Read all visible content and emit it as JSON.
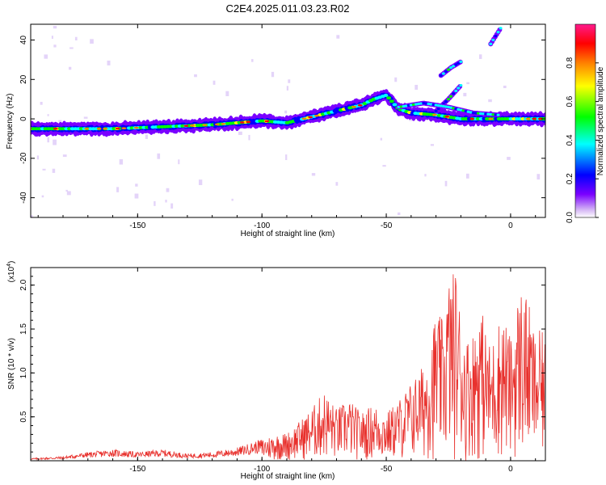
{
  "title": "C2E4.2025.011.03.23.R02",
  "colors": {
    "snr_line": "#e8302c",
    "axes": "#000000"
  },
  "chart_data": [
    {
      "type": "heatmap",
      "name": "spectrogram",
      "xlabel": "Height of straight line (km)",
      "ylabel": "Frequency (Hz)",
      "xlim": [
        -193,
        14
      ],
      "ylim": [
        -50,
        48
      ],
      "xticks": [
        "-150",
        "-100",
        "-50",
        "0"
      ],
      "xtick_values": [
        -150,
        -100,
        -50,
        0
      ],
      "yticks": [
        "-40",
        "-20",
        "0",
        "20",
        "40"
      ],
      "ytick_values": [
        -40,
        -20,
        0,
        20,
        40
      ],
      "colorbar": {
        "label": "Normalized spectral amplitude",
        "range": [
          0,
          1
        ],
        "ticks": [
          "0.0",
          "0.2",
          "0.4",
          "0.6",
          "0.8"
        ],
        "tick_values": [
          0.0,
          0.2,
          0.4,
          0.6,
          0.8
        ],
        "colormap": [
          "#ffffff",
          "#d4b5f5",
          "#7a00ff",
          "#0000ff",
          "#00ffff",
          "#00ff00",
          "#ffff00",
          "#ff8000",
          "#ff0000",
          "#ff1a8c"
        ]
      },
      "ridge": {
        "name": "main trace",
        "x": [
          -193,
          -180,
          -160,
          -140,
          -120,
          -110,
          -100,
          -90,
          -80,
          -70,
          -60,
          -55,
          -50,
          -45,
          -40,
          -30,
          -20,
          -10,
          0,
          14
        ],
        "y": [
          -5,
          -5,
          -5,
          -4,
          -3,
          -2,
          -1,
          -2,
          1,
          4,
          7,
          10,
          12,
          5,
          3,
          2,
          0,
          0,
          0,
          0
        ]
      },
      "branches": [
        {
          "x": [
            -30,
            -25,
            -20
          ],
          "y": [
            4,
            10,
            17
          ]
        },
        {
          "x": [
            -28,
            -24,
            -20
          ],
          "y": [
            22,
            26,
            29
          ]
        },
        {
          "x": [
            -45,
            -35,
            -25,
            -15,
            -5
          ],
          "y": [
            6,
            8,
            6,
            3,
            2
          ]
        },
        {
          "x": [
            -8,
            -6,
            -4
          ],
          "y": [
            38,
            42,
            46
          ]
        }
      ]
    },
    {
      "type": "line",
      "name": "snr",
      "xlabel": "Height of straight line (km)",
      "ylabel": "SNR (10 * v/v)",
      "yscale_label": "(x10",
      "yscale_exp": "4",
      "yscale_close": ")",
      "xlim": [
        -193,
        14
      ],
      "ylim": [
        0,
        2.2
      ],
      "xticks": [
        "-150",
        "-100",
        "-50",
        "0"
      ],
      "xtick_values": [
        -150,
        -100,
        -50,
        0
      ],
      "yticks": [
        "0.5",
        "1.0",
        "1.5",
        "2.0"
      ],
      "ytick_values": [
        0.5,
        1.0,
        1.5,
        2.0
      ],
      "envelope": {
        "x": [
          -193,
          -180,
          -170,
          -160,
          -150,
          -140,
          -130,
          -120,
          -110,
          -100,
          -95,
          -90,
          -85,
          -80,
          -75,
          -70,
          -65,
          -60,
          -55,
          -50,
          -45,
          -40,
          -35,
          -30,
          -27,
          -25,
          -22,
          -20,
          -18,
          -15,
          -12,
          -10,
          -8,
          -5,
          -3,
          0,
          3,
          5,
          8,
          10,
          12,
          14
        ],
        "y": [
          0.03,
          0.05,
          0.1,
          0.13,
          0.1,
          0.13,
          0.08,
          0.1,
          0.15,
          0.25,
          0.3,
          0.32,
          0.45,
          0.6,
          0.8,
          0.6,
          0.7,
          0.55,
          0.65,
          0.55,
          0.7,
          0.9,
          1.1,
          1.7,
          1.6,
          2.1,
          2.2,
          1.7,
          1.4,
          1.5,
          1.8,
          1.5,
          1.3,
          1.6,
          1.7,
          1.4,
          1.9,
          2.05,
          1.7,
          1.4,
          1.5,
          1.4
        ]
      }
    }
  ]
}
